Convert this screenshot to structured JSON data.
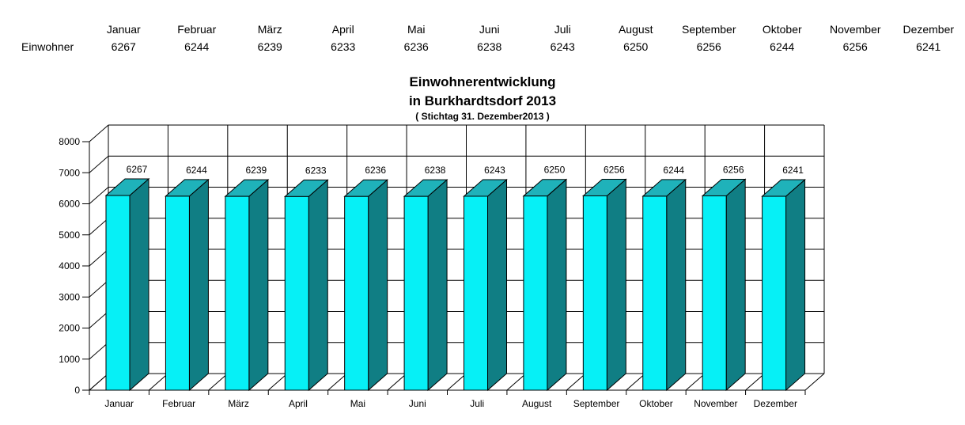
{
  "table": {
    "row_label": "Einwohner",
    "columns": [
      "Januar",
      "Februar",
      "März",
      "April",
      "Mai",
      "Juni",
      "Juli",
      "August",
      "September",
      "Oktober",
      "November",
      "Dezember"
    ],
    "values": [
      "6267",
      "6244",
      "6239",
      "6233",
      "6236",
      "6238",
      "6243",
      "6250",
      "6256",
      "6244",
      "6256",
      "6241"
    ]
  },
  "title": {
    "line1": "Einwohnerentwicklung",
    "line2": "in Burkhardtsdorf 2013",
    "subtitle": "( Stichtag 31. Dezember2013 )"
  },
  "chart_data": {
    "type": "bar",
    "style": "3d-column",
    "title": "Einwohnerentwicklung in Burkhardtsdorf 2013",
    "subtitle": "( Stichtag 31. Dezember2013 )",
    "categories": [
      "Januar",
      "Februar",
      "März",
      "April",
      "Mai",
      "Juni",
      "Juli",
      "August",
      "September",
      "Oktober",
      "November",
      "Dezember"
    ],
    "values": [
      6267,
      6244,
      6239,
      6233,
      6236,
      6238,
      6243,
      6250,
      6256,
      6244,
      6256,
      6241
    ],
    "series_name": "Einwohner",
    "xlabel": "",
    "ylabel": "",
    "ylim": [
      0,
      8000
    ],
    "ytick_step": 1000,
    "ytick_labels": [
      "0",
      "1000",
      "2000",
      "3000",
      "4000",
      "5000",
      "6000",
      "7000",
      "8000"
    ],
    "grid": true,
    "bar_labels_shown": true,
    "legend": "none",
    "colors": {
      "bar_front": "#06F0F6",
      "bar_top": "#1FB2BA",
      "bar_side": "#107E84",
      "outline": "#000000",
      "grid_line": "#000000",
      "background": "#FFFFFF"
    }
  }
}
